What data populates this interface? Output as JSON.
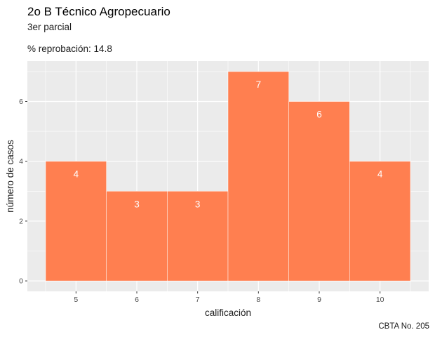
{
  "header": {
    "title": "2o B Técnico Agropecuario",
    "subtitle": "3er parcial",
    "note": "% reprobación: 14.8"
  },
  "caption": "CBTA No. 205",
  "colors": {
    "bar": "#FF7F50",
    "panel": "#EBEBEB",
    "grid": "#FFFFFF",
    "bar_label": "#FFFFFF"
  },
  "chart_data": {
    "type": "bar",
    "categories": [
      "5",
      "6",
      "7",
      "8",
      "9",
      "10"
    ],
    "values": [
      4,
      3,
      3,
      7,
      6,
      4
    ],
    "data_labels": [
      "4",
      "3",
      "3",
      "7",
      "6",
      "4"
    ],
    "xlabel": "calificación",
    "ylabel": "número de casos",
    "yticks": [
      "0",
      "2",
      "4",
      "6"
    ],
    "ylim": [
      0,
      7.2
    ],
    "grid": true,
    "legend": "none"
  }
}
